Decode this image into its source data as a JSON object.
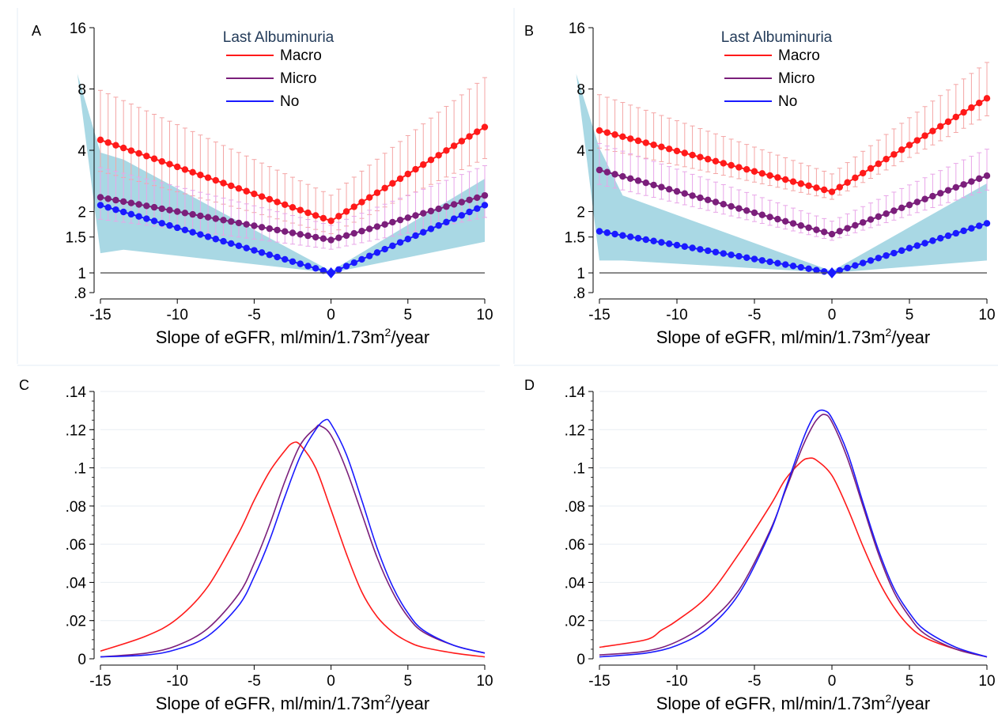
{
  "figure": {
    "panel_letters": [
      "A",
      "B",
      "C",
      "D"
    ]
  },
  "colors": {
    "macro": "#ff1a1a",
    "micro": "#7b1f7b",
    "no": "#1a1aff",
    "macro_ci": "#f4a5a5",
    "micro_ci": "#e8a6e8",
    "band": "#a9d8e4",
    "refline": "#555555",
    "axis": "#000000"
  },
  "chart_data": [
    {
      "panel": "A",
      "type": "line",
      "xlabel": "Slope of eGFR, ml/min/1.73m",
      "xlabel_sup": "2",
      "xlabel_suffix": "/year",
      "ylabel": "",
      "x_ticks": [
        -15,
        -10,
        -5,
        0,
        5,
        10
      ],
      "x_tick_labels": [
        "-15",
        "-10",
        "-5",
        "0",
        "5",
        "10"
      ],
      "xlim": [
        -15,
        10
      ],
      "y_scale": "log",
      "y_ticks": [
        0.8,
        1,
        1.5,
        2,
        4,
        8,
        16
      ],
      "y_tick_labels": [
        ".8",
        "1",
        "1.5",
        "2",
        "4",
        "8",
        "16"
      ],
      "ylim": [
        0.8,
        16
      ],
      "reference_line_y": 1,
      "legend": {
        "title": "Last Albuminuria",
        "position": "top-center",
        "entries": [
          "Macro",
          "Micro",
          "No"
        ]
      },
      "series": [
        {
          "name": "Macro",
          "key": "macro",
          "left": 4.5,
          "vertex": 1.8,
          "right": 5.2,
          "ci_lower_factor": 0.7,
          "ci_upper_factor": 1.75
        },
        {
          "name": "Micro",
          "key": "micro",
          "left": 2.35,
          "vertex": 1.45,
          "right": 2.4,
          "ci_lower_factor": 0.78,
          "ci_upper_factor": 1.4
        },
        {
          "name": "No",
          "key": "no",
          "left": 2.15,
          "vertex": 1.0,
          "right": 2.15
        }
      ],
      "band": {
        "x": [
          -16.5,
          -15,
          -13.5,
          0,
          10
        ],
        "upper": [
          9.5,
          3.9,
          3.6,
          1.02,
          2.9
        ],
        "lower": [
          9.5,
          1.25,
          1.3,
          1.0,
          1.42
        ]
      }
    },
    {
      "panel": "B",
      "type": "line",
      "xlabel": "Slope of eGFR, ml/min/1.73m",
      "xlabel_sup": "2",
      "xlabel_suffix": "/year",
      "ylabel": "",
      "x_ticks": [
        -15,
        -10,
        -5,
        0,
        5,
        10
      ],
      "x_tick_labels": [
        "-15",
        "-10",
        "-5",
        "0",
        "5",
        "10"
      ],
      "xlim": [
        -15,
        10
      ],
      "y_scale": "log",
      "y_ticks": [
        0.8,
        1,
        1.5,
        2,
        4,
        8,
        16
      ],
      "y_tick_labels": [
        ".8",
        "1",
        "1.5",
        "2",
        "4",
        "8",
        "16"
      ],
      "ylim": [
        0.8,
        16
      ],
      "reference_line_y": 1,
      "legend": {
        "title": "Last Albuminuria",
        "position": "top-center",
        "entries": [
          "Macro",
          "Micro",
          "No"
        ]
      },
      "series": [
        {
          "name": "Macro",
          "key": "macro",
          "left": 5.0,
          "vertex": 2.5,
          "right": 7.2,
          "ci_lower_factor": 0.82,
          "ci_upper_factor": 1.5
        },
        {
          "name": "Micro",
          "key": "micro",
          "left": 3.2,
          "vertex": 1.55,
          "right": 3.0,
          "ci_lower_factor": 0.85,
          "ci_upper_factor": 1.35
        },
        {
          "name": "No",
          "key": "no",
          "left": 1.6,
          "vertex": 1.0,
          "right": 1.75
        }
      ],
      "band": {
        "x": [
          -16.5,
          -15,
          -13.5,
          0,
          10
        ],
        "upper": [
          9.5,
          4.1,
          2.4,
          1.02,
          2.75
        ],
        "lower": [
          9.5,
          1.15,
          1.15,
          1.0,
          1.15
        ]
      }
    },
    {
      "panel": "C",
      "type": "line",
      "xlabel": "Slope of eGFR, ml/min/1.73m",
      "xlabel_sup": "2",
      "xlabel_suffix": "/year",
      "ylabel": "",
      "x_ticks": [
        -15,
        -10,
        -5,
        0,
        5,
        10
      ],
      "x_tick_labels": [
        "-15",
        "-10",
        "-5",
        "0",
        "5",
        "10"
      ],
      "xlim": [
        -15,
        10
      ],
      "y_ticks": [
        0,
        0.02,
        0.04,
        0.06,
        0.08,
        0.1,
        0.12,
        0.14
      ],
      "y_tick_labels": [
        "0",
        ".02",
        ".04",
        ".06",
        ".08",
        ".1",
        ".12",
        ".14"
      ],
      "ylim": [
        0,
        0.14
      ],
      "grid": true,
      "series": [
        {
          "name": "Macro",
          "key": "macro",
          "x": [
            -15,
            -12,
            -10,
            -8,
            -6,
            -5,
            -4,
            -3,
            -2.5,
            -2,
            -1,
            0,
            1,
            2,
            3,
            4,
            5,
            6,
            8,
            10
          ],
          "y": [
            0.004,
            0.012,
            0.021,
            0.038,
            0.066,
            0.083,
            0.098,
            0.109,
            0.113,
            0.112,
            0.1,
            0.078,
            0.055,
            0.035,
            0.022,
            0.014,
            0.009,
            0.006,
            0.003,
            0.001
          ]
        },
        {
          "name": "Micro",
          "key": "micro",
          "x": [
            -15,
            -12,
            -10,
            -8,
            -6,
            -5,
            -4,
            -3,
            -2,
            -1,
            -0.7,
            0,
            1,
            2,
            3,
            4,
            5,
            6,
            8,
            10
          ],
          "y": [
            0.001,
            0.003,
            0.007,
            0.016,
            0.034,
            0.05,
            0.07,
            0.093,
            0.112,
            0.121,
            0.122,
            0.117,
            0.099,
            0.076,
            0.053,
            0.035,
            0.022,
            0.014,
            0.007,
            0.003
          ]
        },
        {
          "name": "No",
          "key": "no",
          "x": [
            -15,
            -12,
            -10,
            -8,
            -6,
            -5,
            -4,
            -3,
            -2,
            -1,
            -0.4,
            0,
            1,
            2,
            3,
            4,
            5,
            6,
            8,
            10
          ],
          "y": [
            0.001,
            0.002,
            0.005,
            0.012,
            0.028,
            0.043,
            0.062,
            0.085,
            0.106,
            0.12,
            0.125,
            0.123,
            0.107,
            0.083,
            0.058,
            0.038,
            0.024,
            0.015,
            0.007,
            0.003
          ]
        }
      ]
    },
    {
      "panel": "D",
      "type": "line",
      "xlabel": "Slope of eGFR, ml/min/1.73m",
      "xlabel_sup": "2",
      "xlabel_suffix": "/year",
      "ylabel": "",
      "x_ticks": [
        -15,
        -10,
        -5,
        0,
        5,
        10
      ],
      "x_tick_labels": [
        "-15",
        "-10",
        "-5",
        "0",
        "5",
        "10"
      ],
      "xlim": [
        -15,
        10
      ],
      "y_ticks": [
        0,
        0.02,
        0.04,
        0.06,
        0.08,
        0.1,
        0.12,
        0.14
      ],
      "y_tick_labels": [
        "0",
        ".02",
        ".04",
        ".06",
        ".08",
        ".1",
        ".12",
        ".14"
      ],
      "ylim": [
        0,
        0.14
      ],
      "grid": true,
      "series": [
        {
          "name": "Macro",
          "key": "macro",
          "x": [
            -15,
            -12,
            -11,
            -10,
            -8,
            -6,
            -4,
            -3,
            -2,
            -1.5,
            -1,
            0,
            1,
            2,
            3,
            4,
            5,
            6,
            8,
            10
          ],
          "y": [
            0.006,
            0.01,
            0.015,
            0.02,
            0.033,
            0.055,
            0.08,
            0.094,
            0.103,
            0.105,
            0.104,
            0.096,
            0.079,
            0.059,
            0.041,
            0.027,
            0.017,
            0.011,
            0.005,
            0.001
          ]
        },
        {
          "name": "Micro",
          "key": "micro",
          "x": [
            -15,
            -12,
            -10,
            -8,
            -6,
            -4,
            -3,
            -2,
            -1.5,
            -1,
            -0.5,
            0,
            1,
            2,
            3,
            4,
            5,
            6,
            8,
            10
          ],
          "y": [
            0.002,
            0.004,
            0.009,
            0.019,
            0.036,
            0.067,
            0.088,
            0.109,
            0.118,
            0.125,
            0.128,
            0.124,
            0.105,
            0.08,
            0.055,
            0.035,
            0.022,
            0.013,
            0.005,
            0.001
          ]
        },
        {
          "name": "No",
          "key": "no",
          "x": [
            -15,
            -12,
            -10,
            -8,
            -6,
            -4,
            -3,
            -2,
            -1.5,
            -1,
            -0.5,
            0,
            1,
            2,
            3,
            4,
            5,
            6,
            8,
            10
          ],
          "y": [
            0.001,
            0.003,
            0.007,
            0.016,
            0.034,
            0.066,
            0.089,
            0.112,
            0.122,
            0.129,
            0.13,
            0.126,
            0.108,
            0.082,
            0.057,
            0.037,
            0.024,
            0.015,
            0.006,
            0.001
          ]
        }
      ]
    }
  ]
}
